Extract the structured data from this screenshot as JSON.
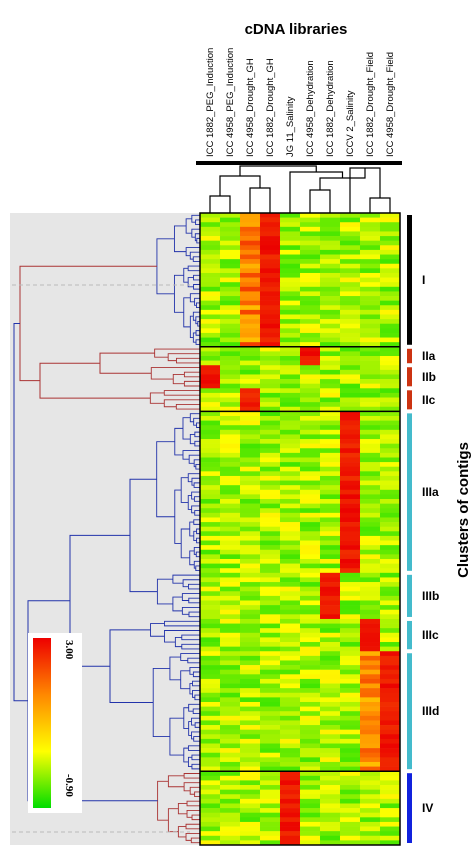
{
  "chart_data": {
    "type": "heatmap",
    "title": "cDNA libraries",
    "ylabel": "Clusters of contigs",
    "columns": [
      "ICC 1882_PEG_Induction",
      "ICC 4958_PEG_Induction",
      "ICC 4958_Drought_GH",
      "ICC 1882_Drought_GH",
      "JG 11_Salinity",
      "ICC 4958_Dehydration",
      "ICC 1882_Dehydration",
      "ICCV 2_Salinity",
      "ICC 1882_Drought_Field",
      "ICC 4958_Drought_Field"
    ],
    "scale": {
      "min": -0.9,
      "max": 3.0,
      "min_label": "-0.90",
      "max_label": "3.00",
      "colors": [
        "#00dd00",
        "#ffff00",
        "#ff8800",
        "#ee0000"
      ]
    },
    "clusters": [
      {
        "name": "I",
        "rows": 29,
        "bar_color": "#000000",
        "high_columns": [
          3,
          2
        ]
      },
      {
        "name": "IIa",
        "rows": 4,
        "bar_color": "#cc3311",
        "high_columns": [
          5
        ]
      },
      {
        "name": "IIb",
        "rows": 5,
        "bar_color": "#cc3311",
        "high_columns": [
          0
        ]
      },
      {
        "name": "IIc",
        "rows": 5,
        "bar_color": "#cc3311",
        "high_columns": [
          2
        ]
      },
      {
        "name": "IIIa",
        "rows": 35,
        "bar_color": "#44bbcc",
        "high_columns": [
          7
        ]
      },
      {
        "name": "IIIb",
        "rows": 10,
        "bar_color": "#44bbcc",
        "high_columns": [
          6
        ]
      },
      {
        "name": "IIIc",
        "rows": 7,
        "bar_color": "#44bbcc",
        "high_columns": [
          8
        ]
      },
      {
        "name": "IIId",
        "rows": 26,
        "bar_color": "#44bbcc",
        "high_columns": [
          9,
          8
        ]
      },
      {
        "name": "IV",
        "rows": 16,
        "bar_color": "#1122dd",
        "high_columns": [
          4
        ]
      }
    ],
    "row_dendrogram_color_groups": [
      "#2233aa",
      "#aa3333",
      "#2233aa",
      "#aa3333"
    ]
  }
}
